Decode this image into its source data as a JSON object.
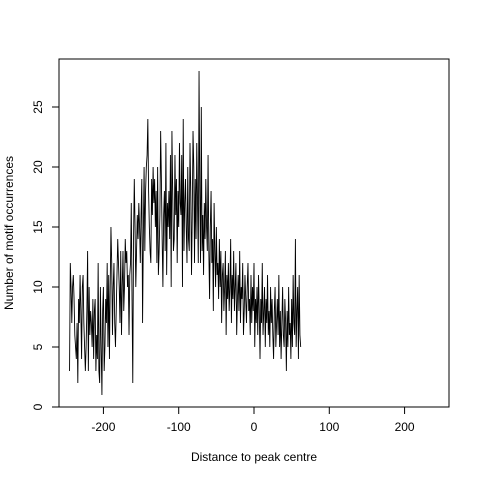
{
  "chart_data": {
    "type": "line",
    "xlabel": "Distance to peak centre",
    "ylabel": "Number of motif occurrences",
    "xlim": [
      -259,
      259
    ],
    "ylim": [
      0,
      29
    ],
    "x_ticks": [
      -200,
      -100,
      0,
      100,
      200
    ],
    "x_tick_labels": [
      "-200",
      "-100",
      "0",
      "100",
      "200"
    ],
    "y_ticks": [
      0,
      5,
      10,
      15,
      20,
      25
    ],
    "y_tick_labels": [
      "0",
      "5",
      "10",
      "15",
      "20",
      "25"
    ],
    "grid": false,
    "legend": "none",
    "line_color": "#000000",
    "series": [
      {
        "x_start": -245,
        "x_step": 1,
        "values": [
          3,
          12,
          10,
          7,
          10,
          11,
          9,
          6,
          5,
          4,
          7,
          2,
          9,
          7,
          11,
          8,
          4,
          10,
          11,
          7,
          5,
          3,
          5,
          8,
          13,
          3,
          10,
          6,
          8,
          7,
          5,
          9,
          4,
          8,
          9,
          3,
          6,
          4,
          12,
          3,
          2,
          10,
          5,
          1,
          8,
          10,
          3,
          5,
          9,
          7,
          12,
          5,
          11,
          4,
          10,
          15,
          12,
          6,
          10,
          12,
          7,
          5,
          8,
          11,
          14,
          12,
          10,
          7,
          13,
          6,
          10,
          13,
          8,
          10,
          14,
          12,
          13,
          10,
          11,
          6,
          11,
          12,
          17,
          9,
          2,
          14,
          19,
          15,
          10,
          13,
          16,
          14,
          17,
          15,
          12,
          16,
          19,
          7,
          14,
          20,
          13,
          18,
          20,
          21,
          24,
          18,
          15,
          13,
          12,
          19,
          16,
          20,
          17,
          19,
          15,
          18,
          12,
          20,
          11,
          13,
          16,
          23,
          19,
          14,
          10,
          16,
          18,
          13,
          22,
          11,
          17,
          15,
          18,
          14,
          21,
          10,
          23,
          18,
          13,
          14,
          21,
          16,
          19,
          12,
          18,
          15,
          22,
          17,
          16,
          21,
          10,
          24,
          13,
          17,
          19,
          15,
          12,
          20,
          14,
          13,
          22,
          18,
          11,
          16,
          23,
          20,
          12,
          19,
          14,
          22,
          17,
          12,
          28,
          18,
          12,
          25,
          13,
          16,
          11,
          17,
          14,
          19,
          15,
          13,
          21,
          13,
          9,
          15,
          18,
          12,
          14,
          8,
          17,
          13,
          10,
          15,
          11,
          12,
          9,
          14,
          10,
          13,
          7,
          11,
          12,
          8,
          10,
          13,
          6,
          11,
          9,
          12,
          8,
          10,
          14,
          7,
          11,
          9,
          13,
          8,
          10,
          12,
          6,
          9,
          11,
          8,
          13,
          7,
          10,
          9,
          12,
          6,
          8,
          11,
          9,
          7,
          10,
          12,
          8,
          9,
          6,
          11,
          7,
          10,
          8,
          12,
          5,
          9,
          7,
          10,
          6,
          11,
          8,
          4,
          9,
          7,
          12,
          6,
          8,
          10,
          5,
          9,
          7,
          11,
          6,
          8,
          5,
          10,
          7,
          9,
          6,
          4,
          8,
          10,
          5,
          7,
          9,
          6,
          11,
          5,
          8,
          4,
          7,
          10,
          6,
          5,
          9,
          7,
          3,
          8,
          5,
          10,
          6,
          7,
          4,
          9,
          5,
          11,
          7,
          6,
          14,
          5,
          8,
          10,
          4,
          11,
          6,
          5
        ]
      }
    ]
  }
}
